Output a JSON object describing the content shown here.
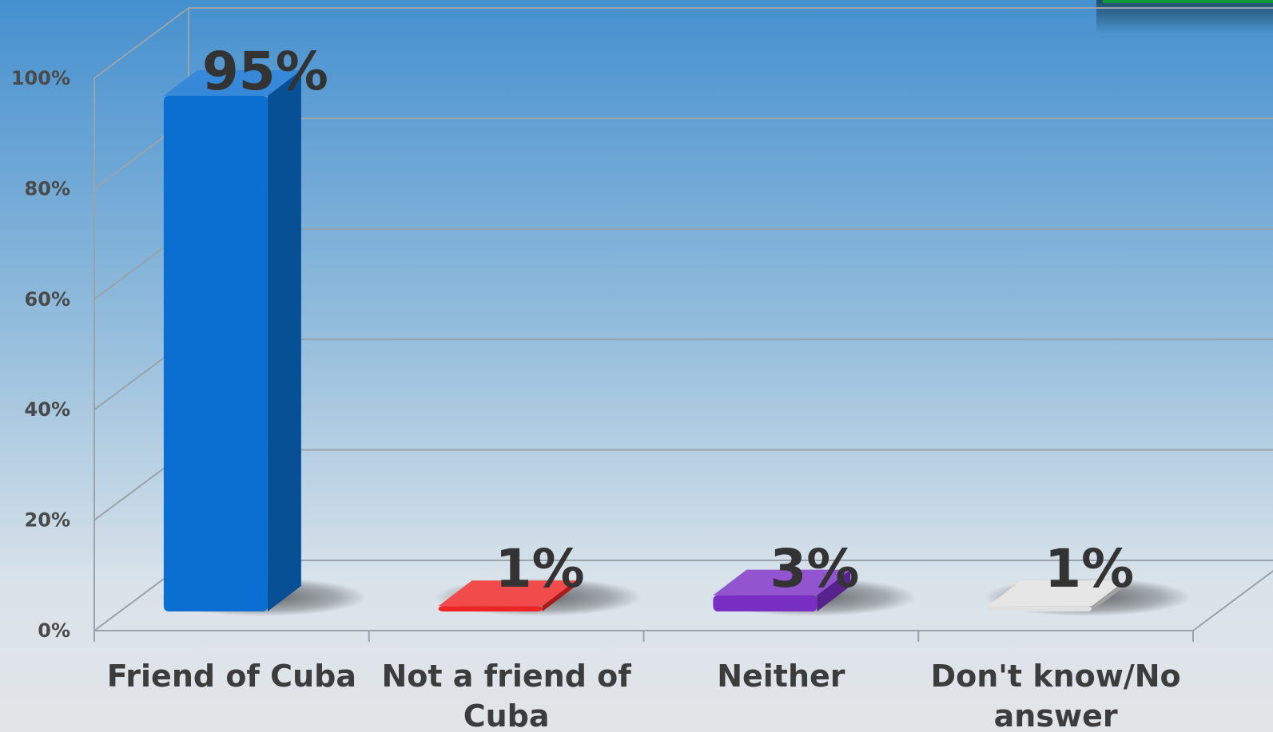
{
  "chart_data": {
    "type": "bar",
    "categories": [
      "Friend of Cuba",
      "Not a friend of Cuba",
      "Neither",
      "Don't know/No answer"
    ],
    "category_lines": [
      [
        "Friend of Cuba"
      ],
      [
        "Not a friend of",
        "Cuba"
      ],
      [
        "Neither"
      ],
      [
        "Don't know/No",
        "answer"
      ]
    ],
    "values": [
      95,
      1,
      3,
      1
    ],
    "data_labels": [
      "95%",
      "1%",
      "3%",
      "1%"
    ],
    "ylim": [
      0,
      100
    ],
    "yticks": [
      0,
      20,
      40,
      60,
      80,
      100
    ],
    "ytick_labels": [
      "0%",
      "20%",
      "40%",
      "60%",
      "80%",
      "100%"
    ],
    "title": "",
    "xlabel": "",
    "ylabel": "",
    "grid": true,
    "legend": "none",
    "style": "3d-column",
    "colors": [
      "#0a6fd0",
      "#ee2424",
      "#7a2fc4",
      "#e0e0e0"
    ]
  }
}
